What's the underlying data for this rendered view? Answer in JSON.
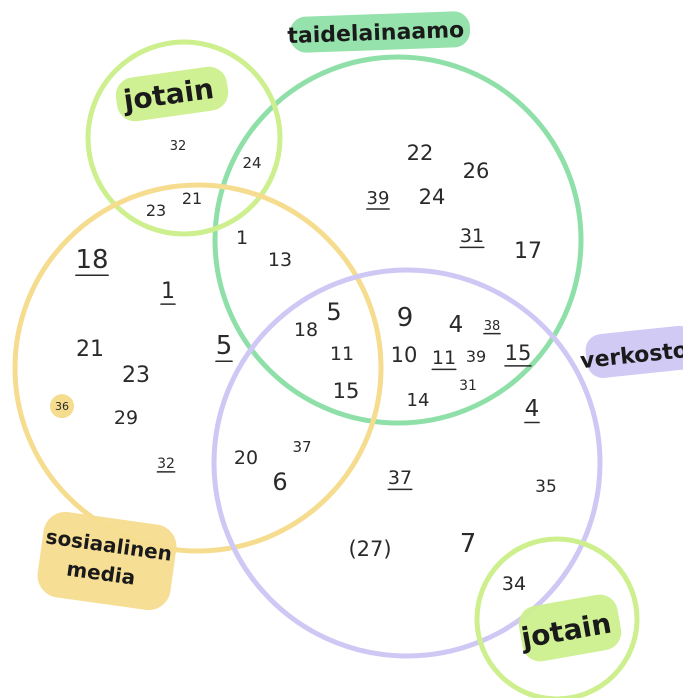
{
  "colors": {
    "green": "#8fe0a8",
    "lime": "#cdef8e",
    "yellow": "#f6dc8f",
    "purple": "#cfc7f4",
    "dot": "#f6dc8f"
  },
  "circles": [
    {
      "id": "taidelainaamo",
      "color": "green"
    },
    {
      "id": "jotain-top",
      "color": "lime"
    },
    {
      "id": "sosiaalinen-media",
      "color": "yellow"
    },
    {
      "id": "verkostot",
      "color": "purple"
    },
    {
      "id": "jotain-bottom",
      "color": "lime"
    }
  ],
  "labels": {
    "taidelainaamo": "taidelainaamo",
    "jotain_top": "jotain",
    "jotain_bottom": "jotain",
    "verkostot": "verkostot",
    "sosiaalinen_line1": "sosiaalinen",
    "sosiaalinen_line2": "media"
  },
  "numbers": [
    {
      "text": "32",
      "underline": false
    },
    {
      "text": "24",
      "underline": false
    },
    {
      "text": "23",
      "underline": false
    },
    {
      "text": "21",
      "underline": false
    },
    {
      "text": "22",
      "underline": false
    },
    {
      "text": "26",
      "underline": false
    },
    {
      "text": "39",
      "underline": true
    },
    {
      "text": "24",
      "underline": false
    },
    {
      "text": "31",
      "underline": true
    },
    {
      "text": "17",
      "underline": false
    },
    {
      "text": "1",
      "underline": false
    },
    {
      "text": "13",
      "underline": false
    },
    {
      "text": "18",
      "underline": true
    },
    {
      "text": "1",
      "underline": true
    },
    {
      "text": "21",
      "underline": false
    },
    {
      "text": "23",
      "underline": false
    },
    {
      "text": "5",
      "underline": true
    },
    {
      "text": "36",
      "underline": false,
      "dot": true
    },
    {
      "text": "29",
      "underline": false
    },
    {
      "text": "32",
      "underline": true
    },
    {
      "text": "18",
      "underline": false
    },
    {
      "text": "5",
      "underline": false
    },
    {
      "text": "11",
      "underline": false
    },
    {
      "text": "15",
      "underline": false
    },
    {
      "text": "9",
      "underline": false
    },
    {
      "text": "4",
      "underline": false
    },
    {
      "text": "38",
      "underline": true
    },
    {
      "text": "10",
      "underline": false
    },
    {
      "text": "11",
      "underline": true
    },
    {
      "text": "39",
      "underline": false
    },
    {
      "text": "15",
      "underline": true
    },
    {
      "text": "31",
      "underline": false
    },
    {
      "text": "14",
      "underline": false
    },
    {
      "text": "4",
      "underline": true
    },
    {
      "text": "20",
      "underline": false
    },
    {
      "text": "37",
      "underline": false
    },
    {
      "text": "6",
      "underline": false
    },
    {
      "text": "37",
      "underline": true
    },
    {
      "text": "35",
      "underline": false
    },
    {
      "text": "(27)",
      "underline": false
    },
    {
      "text": "7",
      "underline": false
    },
    {
      "text": "34",
      "underline": false
    }
  ]
}
